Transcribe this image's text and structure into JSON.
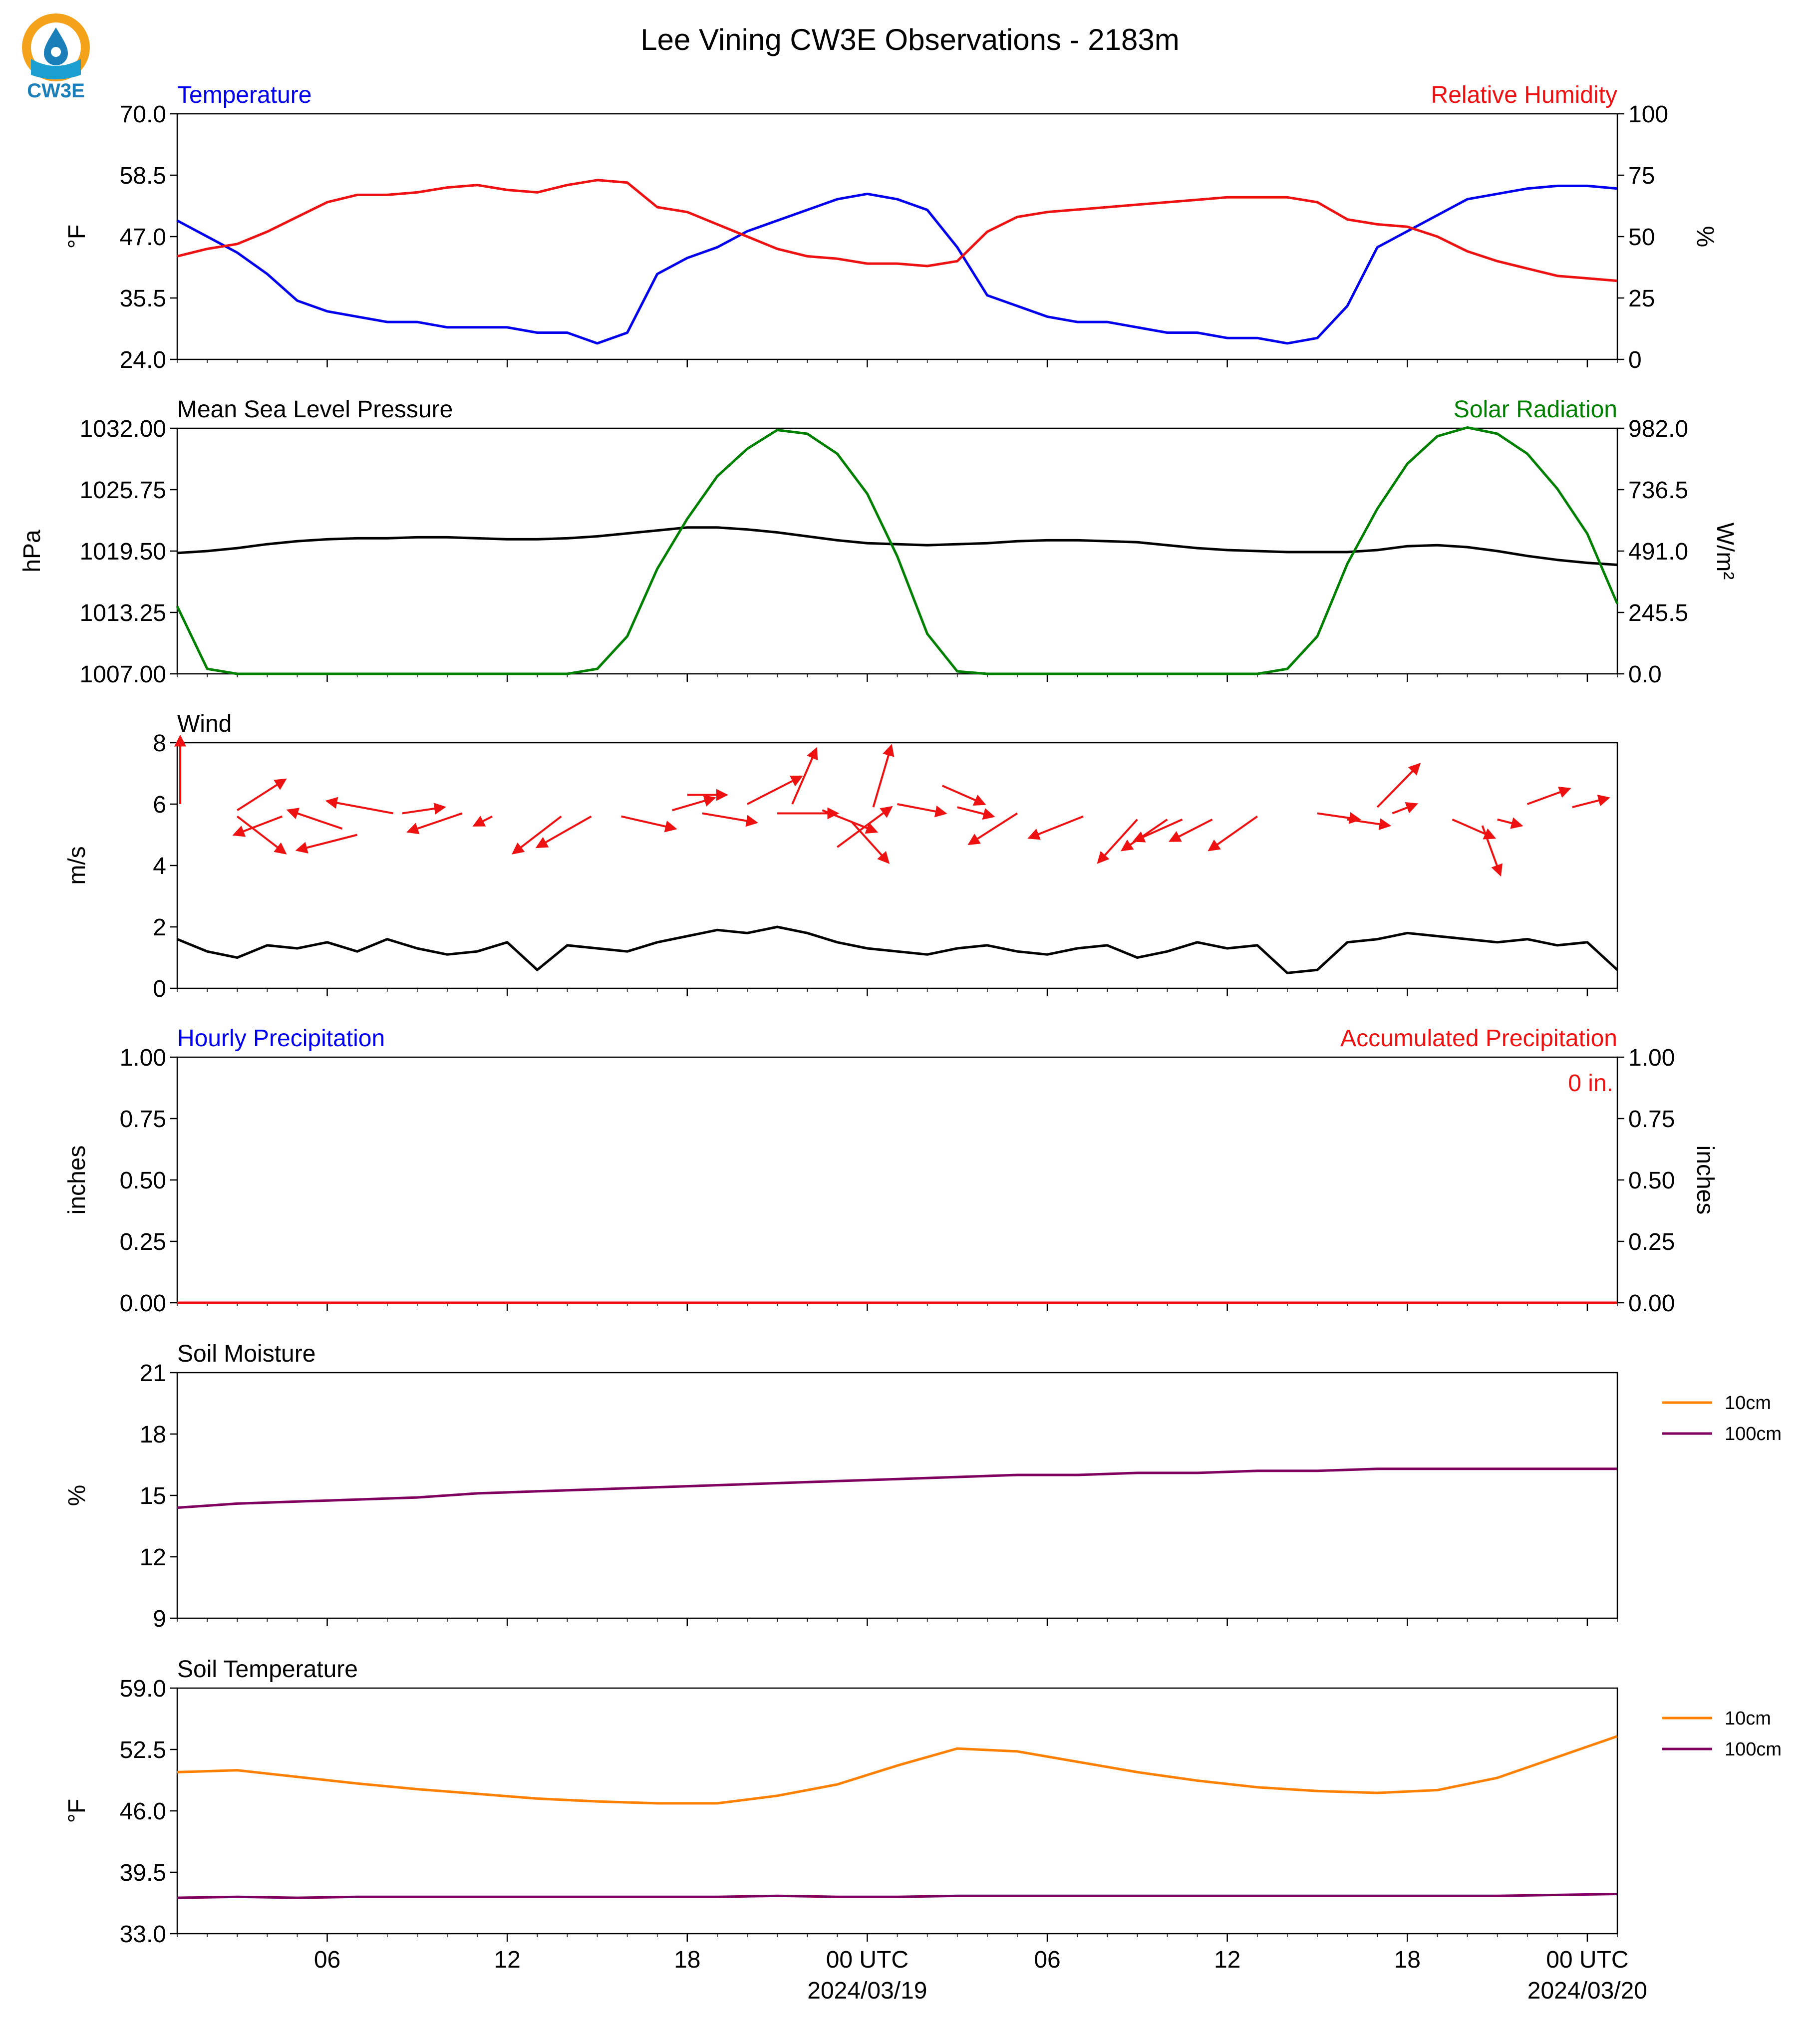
{
  "title": "Lee Vining CW3E Observations - 2183m",
  "logo": {
    "text": "CW3E",
    "icon": "cw3e-drop-logo-icon"
  },
  "colors": {
    "temperature": "#0000ee",
    "humidity": "#ee1111",
    "pressure": "#000000",
    "solar": "#008000",
    "wind_barb": "#ee1111",
    "wind_speed": "#000000",
    "soil_10cm": "#ff8000",
    "soil_100cm": "#800060"
  },
  "time_axis": {
    "ticks": [
      {
        "t": 5,
        "label": "06"
      },
      {
        "t": 11,
        "label": "12"
      },
      {
        "t": 17,
        "label": "18"
      },
      {
        "t": 23,
        "label": "00 UTC",
        "sub": "2024/03/19"
      },
      {
        "t": 29,
        "label": "06"
      },
      {
        "t": 35,
        "label": "12"
      },
      {
        "t": 41,
        "label": "18"
      },
      {
        "t": 47,
        "label": "00 UTC",
        "sub": "2024/03/20"
      }
    ],
    "range_hours": [
      0,
      48
    ]
  },
  "chart_data": [
    {
      "type": "line",
      "panel": "temperature_humidity",
      "left_title": "Temperature",
      "right_title": "Relative Humidity",
      "ylabel": "°F",
      "ylabel_right": "%",
      "ylim": [
        24,
        70
      ],
      "ylim_right": [
        0,
        100
      ],
      "yticks": [
        "70.0",
        "58.5",
        "47.0",
        "35.5",
        "24.0"
      ],
      "yticks_right": [
        "100",
        "75",
        "50",
        "25",
        "0"
      ],
      "x_hours": [
        0,
        1,
        2,
        3,
        4,
        5,
        6,
        7,
        8,
        9,
        10,
        11,
        12,
        13,
        14,
        15,
        16,
        17,
        18,
        19,
        20,
        21,
        22,
        23,
        24,
        25,
        26,
        27,
        28,
        29,
        30,
        31,
        32,
        33,
        34,
        35,
        36,
        37,
        38,
        39,
        40,
        41,
        42,
        43,
        44,
        45,
        46,
        47,
        48
      ],
      "series": [
        {
          "name": "Temperature",
          "axis": "left",
          "values": [
            50,
            47,
            44,
            40,
            35,
            33,
            32,
            31,
            31,
            30,
            30,
            30,
            29,
            29,
            27,
            29,
            40,
            43,
            45,
            48,
            50,
            52,
            54,
            55,
            54,
            52,
            45,
            36,
            34,
            32,
            31,
            31,
            30,
            29,
            29,
            28,
            28,
            27,
            28,
            34,
            45,
            48,
            51,
            54,
            55,
            56,
            56.5,
            56.5,
            56
          ]
        },
        {
          "name": "Relative Humidity",
          "axis": "right",
          "values": [
            42,
            45,
            47,
            52,
            58,
            64,
            67,
            67,
            68,
            70,
            71,
            69,
            68,
            71,
            73,
            72,
            62,
            60,
            55,
            50,
            45,
            42,
            41,
            39,
            39,
            38,
            40,
            52,
            58,
            60,
            61,
            62,
            63,
            64,
            65,
            66,
            66,
            66,
            64,
            57,
            55,
            54,
            50,
            44,
            40,
            37,
            34,
            33,
            32
          ]
        }
      ]
    },
    {
      "type": "line",
      "panel": "pressure_solar",
      "left_title": "Mean Sea Level Pressure",
      "right_title": "Solar Radiation",
      "ylabel": "hPa",
      "ylabel_right": "W/m²",
      "ylim": [
        1007,
        1032
      ],
      "ylim_right": [
        0,
        982
      ],
      "yticks": [
        "1032.00",
        "1025.75",
        "1019.50",
        "1013.25",
        "1007.00"
      ],
      "yticks_right": [
        "982.0",
        "736.5",
        "491.0",
        "245.5",
        "0.0"
      ],
      "x_hours": [
        0,
        1,
        2,
        3,
        4,
        5,
        6,
        7,
        8,
        9,
        10,
        11,
        12,
        13,
        14,
        15,
        16,
        17,
        18,
        19,
        20,
        21,
        22,
        23,
        24,
        25,
        26,
        27,
        28,
        29,
        30,
        31,
        32,
        33,
        34,
        35,
        36,
        37,
        38,
        39,
        40,
        41,
        42,
        43,
        44,
        45,
        46,
        47,
        48
      ],
      "series": [
        {
          "name": "Mean Sea Level Pressure",
          "axis": "left",
          "values": [
            1019.3,
            1019.5,
            1019.8,
            1020.2,
            1020.5,
            1020.7,
            1020.8,
            1020.8,
            1020.9,
            1020.9,
            1020.8,
            1020.7,
            1020.7,
            1020.8,
            1021.0,
            1021.3,
            1021.6,
            1021.9,
            1021.9,
            1021.7,
            1021.4,
            1021.0,
            1020.6,
            1020.3,
            1020.2,
            1020.1,
            1020.2,
            1020.3,
            1020.5,
            1020.6,
            1020.6,
            1020.5,
            1020.4,
            1020.1,
            1019.8,
            1019.6,
            1019.5,
            1019.4,
            1019.4,
            1019.4,
            1019.6,
            1020.0,
            1020.1,
            1019.9,
            1019.5,
            1019.0,
            1018.6,
            1018.3,
            1018.1
          ]
        },
        {
          "name": "Solar Radiation",
          "axis": "right",
          "values": [
            270,
            20,
            0,
            0,
            0,
            0,
            0,
            0,
            0,
            0,
            0,
            0,
            0,
            0,
            20,
            150,
            420,
            620,
            790,
            900,
            975,
            960,
            880,
            720,
            470,
            160,
            10,
            0,
            0,
            0,
            0,
            0,
            0,
            0,
            0,
            0,
            0,
            20,
            150,
            440,
            660,
            840,
            950,
            985,
            960,
            880,
            740,
            560,
            280
          ]
        }
      ]
    },
    {
      "type": "line",
      "panel": "wind",
      "left_title": "Wind",
      "ylabel": "m/s",
      "ylim": [
        0,
        8
      ],
      "yticks": [
        "8",
        "6",
        "4",
        "2",
        "0"
      ],
      "x_hours": [
        0,
        1,
        2,
        3,
        4,
        5,
        6,
        7,
        8,
        9,
        10,
        11,
        12,
        13,
        14,
        15,
        16,
        17,
        18,
        19,
        20,
        21,
        22,
        23,
        24,
        25,
        26,
        27,
        28,
        29,
        30,
        31,
        32,
        33,
        34,
        35,
        36,
        37,
        38,
        39,
        40,
        41,
        42,
        43,
        44,
        45,
        46,
        47,
        48
      ],
      "series": [
        {
          "name": "Wind Speed",
          "axis": "left",
          "values": [
            1.6,
            1.2,
            1.0,
            1.4,
            1.3,
            1.5,
            1.2,
            1.6,
            1.3,
            1.1,
            1.2,
            1.5,
            0.6,
            1.4,
            1.3,
            1.2,
            1.5,
            1.7,
            1.9,
            1.8,
            2.0,
            1.8,
            1.5,
            1.3,
            1.2,
            1.1,
            1.3,
            1.4,
            1.2,
            1.1,
            1.3,
            1.4,
            1.0,
            1.2,
            1.5,
            1.3,
            1.4,
            0.5,
            0.6,
            1.5,
            1.6,
            1.8,
            1.7,
            1.6,
            1.5,
            1.6,
            1.4,
            1.5,
            0.6
          ]
        }
      ],
      "barbs": {
        "u_hours_per_unit": 1,
        "items": [
          {
            "t": 0.1,
            "y": 6.0,
            "dx": 0.0,
            "dy": 2.2
          },
          {
            "t": 2.0,
            "y": 5.8,
            "dx": 1.6,
            "dy": 1.0
          },
          {
            "t": 2.0,
            "y": 5.6,
            "dx": 1.6,
            "dy": -1.2
          },
          {
            "t": 3.5,
            "y": 5.6,
            "dx": -1.6,
            "dy": -0.6
          },
          {
            "t": 5.5,
            "y": 5.2,
            "dx": -1.8,
            "dy": 0.6
          },
          {
            "t": 6.0,
            "y": 5.0,
            "dx": -2.0,
            "dy": -0.5
          },
          {
            "t": 7.2,
            "y": 5.7,
            "dx": -2.2,
            "dy": 0.4
          },
          {
            "t": 7.5,
            "y": 5.7,
            "dx": 1.4,
            "dy": 0.2
          },
          {
            "t": 9.5,
            "y": 5.7,
            "dx": -1.8,
            "dy": -0.6
          },
          {
            "t": 10.5,
            "y": 5.6,
            "dx": -0.6,
            "dy": -0.3
          },
          {
            "t": 12.8,
            "y": 5.6,
            "dx": -1.6,
            "dy": -1.2
          },
          {
            "t": 13.8,
            "y": 5.6,
            "dx": -1.8,
            "dy": -1.0
          },
          {
            "t": 14.8,
            "y": 5.6,
            "dx": 1.8,
            "dy": -0.4
          },
          {
            "t": 16.5,
            "y": 5.8,
            "dx": 1.4,
            "dy": 0.4
          },
          {
            "t": 17.5,
            "y": 5.7,
            "dx": 1.8,
            "dy": -0.3
          },
          {
            "t": 17.0,
            "y": 6.3,
            "dx": 1.3,
            "dy": 0.0
          },
          {
            "t": 19.0,
            "y": 6.0,
            "dx": 1.8,
            "dy": 0.9
          },
          {
            "t": 20.0,
            "y": 5.7,
            "dx": 2.0,
            "dy": 0.0
          },
          {
            "t": 20.5,
            "y": 6.0,
            "dx": 0.8,
            "dy": 1.8
          },
          {
            "t": 21.5,
            "y": 5.8,
            "dx": 1.8,
            "dy": -0.7
          },
          {
            "t": 22.5,
            "y": 5.4,
            "dx": 1.2,
            "dy": -1.3
          },
          {
            "t": 23.2,
            "y": 5.9,
            "dx": 0.6,
            "dy": 2.0
          },
          {
            "t": 22.0,
            "y": 4.6,
            "dx": 1.8,
            "dy": 1.3
          },
          {
            "t": 24.0,
            "y": 6.0,
            "dx": 1.6,
            "dy": -0.3
          },
          {
            "t": 25.5,
            "y": 6.6,
            "dx": 1.4,
            "dy": -0.6
          },
          {
            "t": 26.0,
            "y": 5.9,
            "dx": 1.2,
            "dy": -0.3
          },
          {
            "t": 28.0,
            "y": 5.7,
            "dx": -1.6,
            "dy": -1.0
          },
          {
            "t": 30.2,
            "y": 5.6,
            "dx": -1.8,
            "dy": -0.7
          },
          {
            "t": 32.0,
            "y": 5.5,
            "dx": -1.3,
            "dy": -1.4
          },
          {
            "t": 33.0,
            "y": 5.5,
            "dx": -1.5,
            "dy": -1.0
          },
          {
            "t": 33.5,
            "y": 5.5,
            "dx": -1.6,
            "dy": -0.7
          },
          {
            "t": 34.5,
            "y": 5.5,
            "dx": -1.4,
            "dy": -0.7
          },
          {
            "t": 36.0,
            "y": 5.6,
            "dx": -1.6,
            "dy": -1.1
          },
          {
            "t": 38.0,
            "y": 5.7,
            "dx": 1.4,
            "dy": -0.2
          },
          {
            "t": 39.0,
            "y": 5.5,
            "dx": 1.4,
            "dy": -0.2
          },
          {
            "t": 40.0,
            "y": 5.9,
            "dx": 1.4,
            "dy": 1.4
          },
          {
            "t": 40.5,
            "y": 5.7,
            "dx": 0.8,
            "dy": 0.3
          },
          {
            "t": 42.5,
            "y": 5.5,
            "dx": 1.4,
            "dy": -0.6
          },
          {
            "t": 43.5,
            "y": 5.3,
            "dx": 0.6,
            "dy": -1.6
          },
          {
            "t": 44.0,
            "y": 5.5,
            "dx": 0.8,
            "dy": -0.2
          },
          {
            "t": 45.0,
            "y": 6.0,
            "dx": 1.4,
            "dy": 0.5
          },
          {
            "t": 46.5,
            "y": 5.9,
            "dx": 1.2,
            "dy": 0.3
          }
        ]
      }
    },
    {
      "type": "line",
      "panel": "precipitation",
      "left_title": "Hourly Precipitation",
      "right_title": "Accumulated Precipitation",
      "ylabel": "inches",
      "ylabel_right": "inches",
      "ylim": [
        0,
        1
      ],
      "ylim_right": [
        0,
        1
      ],
      "yticks": [
        "1.00",
        "0.75",
        "0.50",
        "0.25",
        "0.00"
      ],
      "yticks_right": [
        "1.00",
        "0.75",
        "0.50",
        "0.25",
        "0.00"
      ],
      "annotation": "0 in.",
      "x_hours": [
        0,
        48
      ],
      "series": [
        {
          "name": "Accumulated Precipitation",
          "axis": "right",
          "values": [
            0,
            0
          ]
        }
      ]
    },
    {
      "type": "line",
      "panel": "soil_moisture",
      "left_title": "Soil Moisture",
      "ylabel": "%",
      "ylim": [
        9,
        21
      ],
      "yticks": [
        "21",
        "18",
        "15",
        "12",
        "9"
      ],
      "legend": [
        "10cm",
        "100cm"
      ],
      "x_hours": [
        0,
        2,
        4,
        6,
        8,
        10,
        12,
        14,
        16,
        18,
        20,
        22,
        24,
        26,
        28,
        30,
        32,
        34,
        36,
        38,
        40,
        42,
        44,
        46,
        48
      ],
      "series": [
        {
          "name": "100cm",
          "axis": "left",
          "values": [
            14.4,
            14.6,
            14.7,
            14.8,
            14.9,
            15.1,
            15.2,
            15.3,
            15.4,
            15.5,
            15.6,
            15.7,
            15.8,
            15.9,
            16.0,
            16.0,
            16.1,
            16.1,
            16.2,
            16.2,
            16.3,
            16.3,
            16.3,
            16.3,
            16.3
          ]
        }
      ]
    },
    {
      "type": "line",
      "panel": "soil_temperature",
      "left_title": "Soil Temperature",
      "ylabel": "°F",
      "ylim": [
        33,
        59
      ],
      "yticks": [
        "59.0",
        "52.5",
        "46.0",
        "39.5",
        "33.0"
      ],
      "legend": [
        "10cm",
        "100cm"
      ],
      "x_hours": [
        0,
        2,
        4,
        6,
        8,
        10,
        12,
        14,
        16,
        18,
        20,
        22,
        24,
        26,
        28,
        30,
        32,
        34,
        36,
        38,
        40,
        42,
        44,
        46,
        48
      ],
      "series": [
        {
          "name": "10cm",
          "axis": "left",
          "values": [
            50.1,
            50.3,
            49.6,
            48.9,
            48.3,
            47.8,
            47.3,
            47.0,
            46.8,
            46.8,
            47.6,
            48.8,
            50.8,
            52.6,
            52.3,
            51.2,
            50.1,
            49.2,
            48.5,
            48.1,
            47.9,
            48.2,
            49.5,
            51.7,
            53.9
          ]
        },
        {
          "name": "100cm",
          "axis": "left",
          "values": [
            36.8,
            36.9,
            36.8,
            36.9,
            36.9,
            36.9,
            36.9,
            36.9,
            36.9,
            36.9,
            37.0,
            36.9,
            36.9,
            37.0,
            37.0,
            37.0,
            37.0,
            37.0,
            37.0,
            37.0,
            37.0,
            37.0,
            37.0,
            37.1,
            37.2
          ]
        }
      ]
    }
  ]
}
